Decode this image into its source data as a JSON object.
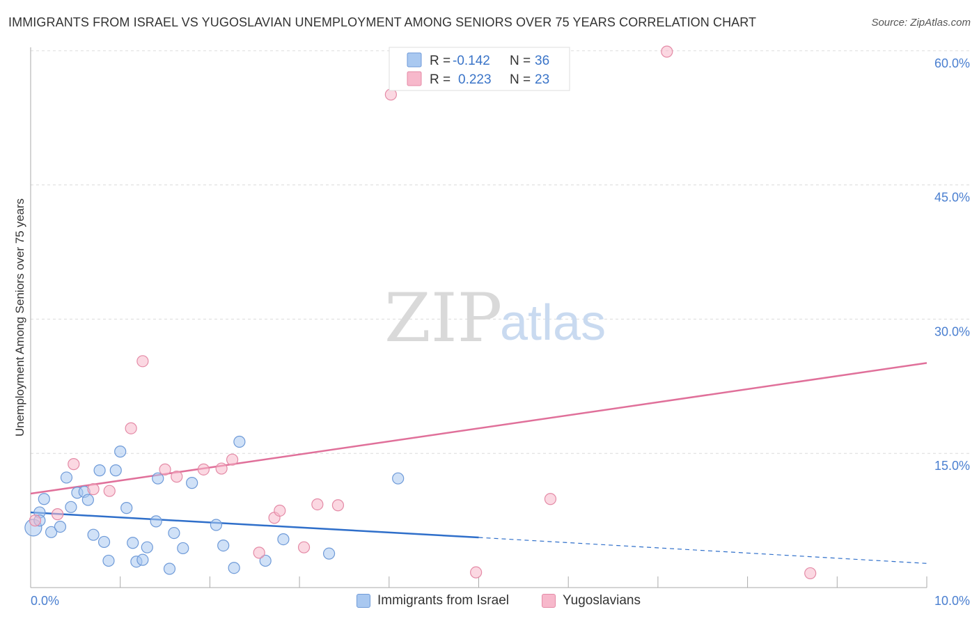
{
  "title": "IMMIGRANTS FROM ISRAEL VS YUGOSLAVIAN UNEMPLOYMENT AMONG SENIORS OVER 75 YEARS CORRELATION CHART",
  "source": "Source: ZipAtlas.com",
  "watermark": {
    "zip": "ZIP",
    "atlas": "atlas"
  },
  "legend_stats": [
    {
      "r_label": "R =",
      "r_value": "-0.142",
      "n_label": "N =",
      "n_value": "36",
      "color": "#a9c8f0"
    },
    {
      "r_label": "R =",
      "r_value": "0.223",
      "n_label": "N =",
      "n_value": "23",
      "color": "#f7b8cb"
    }
  ],
  "bottom_legend": [
    {
      "label": "Immigrants from Israel",
      "color": "#a9c8f0"
    },
    {
      "label": "Yugoslavians",
      "color": "#f7b8cb"
    }
  ],
  "chart_data": {
    "type": "scatter",
    "title": "IMMIGRANTS FROM ISRAEL VS YUGOSLAVIAN UNEMPLOYMENT AMONG SENIORS OVER 75 YEARS CORRELATION CHART",
    "xlabel": "",
    "ylabel": "Unemployment Among Seniors over 75 years",
    "xlim": [
      0,
      10
    ],
    "ylim": [
      0,
      61
    ],
    "x_tick_labels": [
      {
        "value": 0,
        "label": "0.0%"
      },
      {
        "value": 10,
        "label": "10.0%"
      }
    ],
    "y_tick_labels": [
      {
        "value": 15,
        "label": "15.0%"
      },
      {
        "value": 30,
        "label": "30.0%"
      },
      {
        "value": 45,
        "label": "45.0%"
      },
      {
        "value": 60,
        "label": "60.0%"
      }
    ],
    "y_gridlines": [
      15,
      30,
      45,
      60
    ],
    "x_minor_ticks": [
      1,
      2,
      3,
      4,
      5,
      6,
      7,
      8,
      9,
      10
    ],
    "series": [
      {
        "name": "Immigrants from Israel",
        "color": "#a9c8f0",
        "stroke": "#6e9ad8",
        "points": [
          [
            0.03,
            6.7
          ],
          [
            0.1,
            8.4
          ],
          [
            0.15,
            9.9
          ],
          [
            0.23,
            6.2
          ],
          [
            0.33,
            6.8
          ],
          [
            0.4,
            12.3
          ],
          [
            0.45,
            9.0
          ],
          [
            0.52,
            10.6
          ],
          [
            0.6,
            10.7
          ],
          [
            0.64,
            9.8
          ],
          [
            0.7,
            5.9
          ],
          [
            0.77,
            13.1
          ],
          [
            0.82,
            5.1
          ],
          [
            0.87,
            3.0
          ],
          [
            0.95,
            13.1
          ],
          [
            1.0,
            15.2
          ],
          [
            1.07,
            8.9
          ],
          [
            1.14,
            5.0
          ],
          [
            1.18,
            2.9
          ],
          [
            1.25,
            3.1
          ],
          [
            1.3,
            4.5
          ],
          [
            1.4,
            7.4
          ],
          [
            1.42,
            12.2
          ],
          [
            1.55,
            2.1
          ],
          [
            1.6,
            6.1
          ],
          [
            1.7,
            4.4
          ],
          [
            1.8,
            11.7
          ],
          [
            2.07,
            7.0
          ],
          [
            2.15,
            4.7
          ],
          [
            2.27,
            2.2
          ],
          [
            2.33,
            16.3
          ],
          [
            2.62,
            3.0
          ],
          [
            2.82,
            5.4
          ],
          [
            3.33,
            3.8
          ],
          [
            4.1,
            12.2
          ],
          [
            0.1,
            7.5
          ]
        ],
        "trend": {
          "x_start": 0.0,
          "y_start": 8.4,
          "x_solid_end": 5.0,
          "y_solid_end": 5.6,
          "x_dash_end": 10.0,
          "y_dash_end": 2.7
        }
      },
      {
        "name": "Yugoslavians",
        "color": "#f7b8cb",
        "stroke": "#e48aa6",
        "points": [
          [
            0.05,
            7.5
          ],
          [
            0.3,
            8.2
          ],
          [
            0.48,
            13.8
          ],
          [
            0.7,
            11.0
          ],
          [
            0.88,
            10.8
          ],
          [
            1.12,
            17.8
          ],
          [
            1.25,
            25.3
          ],
          [
            1.5,
            13.2
          ],
          [
            1.63,
            12.4
          ],
          [
            1.93,
            13.2
          ],
          [
            2.13,
            13.3
          ],
          [
            2.25,
            14.3
          ],
          [
            2.55,
            3.9
          ],
          [
            2.72,
            7.8
          ],
          [
            2.78,
            8.6
          ],
          [
            3.05,
            4.5
          ],
          [
            3.2,
            9.3
          ],
          [
            3.43,
            9.2
          ],
          [
            4.02,
            55.1
          ],
          [
            4.97,
            1.7
          ],
          [
            5.8,
            9.9
          ],
          [
            7.1,
            59.9
          ],
          [
            8.7,
            1.6
          ]
        ],
        "trend": {
          "x_start": 0.0,
          "y_start": 10.5,
          "x_end": 10.0,
          "y_end": 25.1
        }
      }
    ]
  }
}
